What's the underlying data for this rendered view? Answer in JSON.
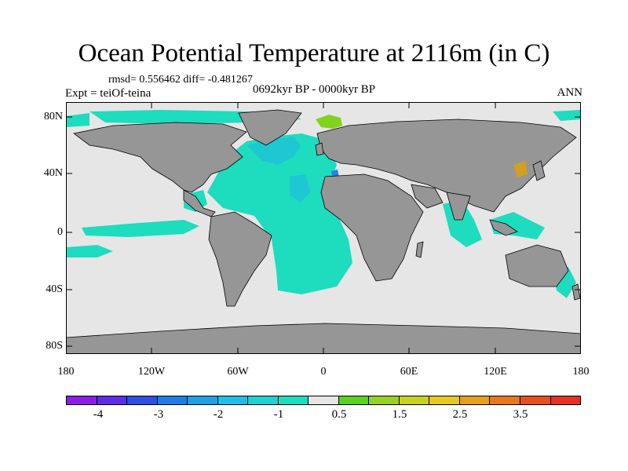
{
  "title": "Ocean Potential Temperature at 2116m (in C)",
  "stats": "rmsd= 0.556462 diff= -0.481267",
  "experiment": "Expt = teiOf-teina",
  "period": "0692kyr BP - 0000kyr BP",
  "season": "ANN",
  "lat_labels": [
    "80N",
    "40N",
    "0",
    "40S",
    "80S"
  ],
  "lon_labels": [
    "180",
    "120W",
    "60W",
    "0",
    "60E",
    "120E",
    "180"
  ],
  "legend": {
    "colors": [
      "#8a1ee6",
      "#5a2ee6",
      "#2e4ee6",
      "#1e7ee6",
      "#1ea0e6",
      "#1ebee6",
      "#1ed2d2",
      "#1edcbe",
      "#e6e6e6",
      "#5ad21e",
      "#96d21e",
      "#c8d21e",
      "#e6c81e",
      "#e6a01e",
      "#e6781e",
      "#e6501e",
      "#e6321e"
    ],
    "labels": [
      "-4",
      "-3",
      "-2",
      "-1",
      "0.5",
      "1.5",
      "2.5",
      "3.5"
    ]
  },
  "map_colors": {
    "land": "#969696",
    "ocean_neutral": "#e6e6e6",
    "cold_anomaly": "#1edcbe",
    "cooler_anomaly": "#1ec8d2",
    "deep_anomaly": "#1e82e6",
    "warm_anomaly": "#82d21e",
    "hot_anomaly": "#d2a01e"
  }
}
